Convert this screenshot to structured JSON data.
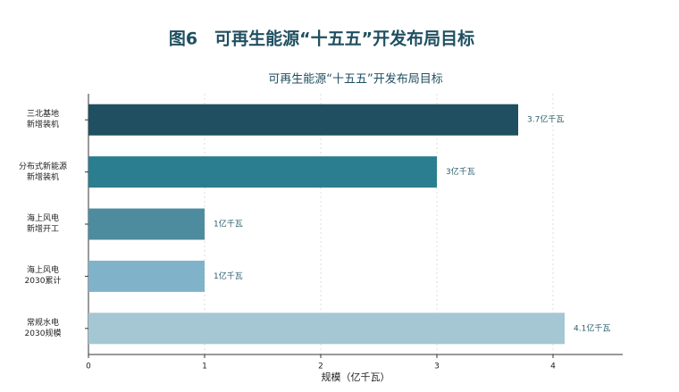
{
  "heading": "图6　可再生能源“十五五”开发布局目标",
  "chart_data": {
    "type": "bar",
    "orientation": "horizontal",
    "title": "可再生能源“十五五”开发布局目标",
    "xlabel": "规模（亿千瓦）",
    "categories": [
      "三北基地\n新增装机",
      "分布式新能源\n新增装机",
      "海上风电\n新增开工",
      "海上风电\n2030累计",
      "常规水电\n2030规模"
    ],
    "values": [
      3.7,
      3,
      1,
      1,
      4.1
    ],
    "value_labels": [
      "3.7亿千瓦",
      "3亿千瓦",
      "1亿千瓦",
      "1亿千瓦",
      "4.1亿千瓦"
    ],
    "colors": [
      "#1f4f60",
      "#2b7e8f",
      "#4d8c9f",
      "#80b3c9",
      "#a4c7d3"
    ],
    "xlim": [
      0,
      4.6
    ],
    "xticks": [
      0,
      1,
      2,
      3,
      4
    ],
    "grid": true
  }
}
